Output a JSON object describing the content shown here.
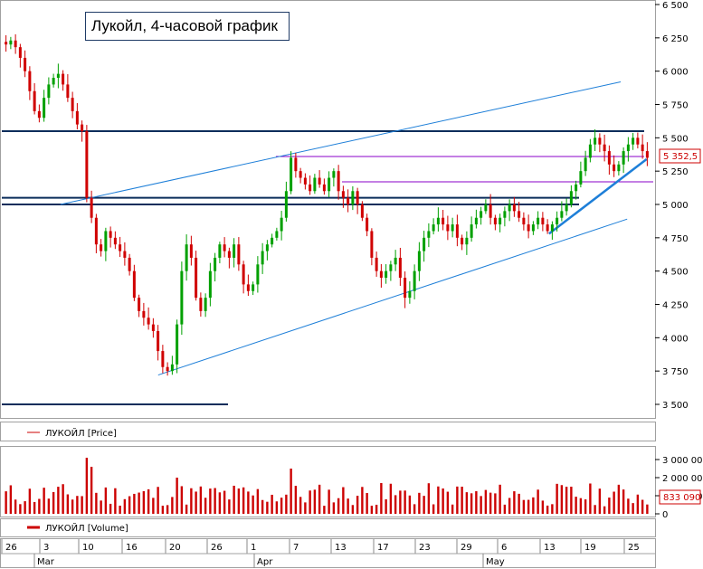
{
  "chart_data": {
    "type": "candlestick",
    "title": "Лукойл, 4-часовой график",
    "price_axis": {
      "ticks": [
        "6 500",
        "6 250",
        "6 000",
        "5 750",
        "5 500",
        "5 250",
        "5 000",
        "4 750",
        "4 500",
        "4 250",
        "4 000",
        "3 750",
        "3 500"
      ],
      "tick_values": [
        6500,
        6250,
        6000,
        5750,
        5500,
        5250,
        5000,
        4750,
        4500,
        4250,
        4000,
        3750,
        3500
      ],
      "ylim": [
        3400,
        6520
      ]
    },
    "volume_axis": {
      "ticks": [
        "3 000 000",
        "2 000 000",
        "1 000 000",
        "0"
      ],
      "tick_values": [
        3000000,
        2000000,
        1000000,
        0
      ],
      "ylim": [
        0,
        3500000
      ]
    },
    "x_axis": {
      "day_labels": [
        "26",
        "3",
        "10",
        "16",
        "20",
        "26",
        "1",
        "7",
        "13",
        "17",
        "23",
        "29",
        "6",
        "13",
        "19",
        "25"
      ],
      "month_labels": [
        "Mar",
        "Apr",
        "May"
      ]
    },
    "last_price_label": "5 352,5",
    "last_volume_label": "833 090",
    "legends": {
      "price": "ЛУКОЙЛ [Price]",
      "volume": "ЛУКОЙЛ [Volume]"
    },
    "colors": {
      "up": "#00a000",
      "down": "#d00000",
      "volume": "#cc0000",
      "trend": "#1e7fd8",
      "level": "#0b2d5b",
      "resistance": "#8a00c8"
    },
    "levels": [
      5550,
      5050,
      5000,
      3500
    ],
    "resistance_levels": [
      5360,
      5170
    ],
    "trend_lines": [
      {
        "from": [
          0.09,
          5000
        ],
        "to": [
          0.95,
          5920
        ]
      },
      {
        "from": [
          0.24,
          3720
        ],
        "to": [
          0.96,
          4890
        ]
      },
      {
        "from": [
          0.84,
          4780
        ],
        "to": [
          0.99,
          5340
        ]
      }
    ],
    "candles_ohlc_summary": "approx. 4-hour bars, late Feb to end of May",
    "price_path": [
      6200,
      6230,
      6180,
      6100,
      6000,
      5850,
      5700,
      5650,
      5800,
      5900,
      5950,
      5980,
      5900,
      5800,
      5700,
      5600,
      5550,
      5050,
      4900,
      4700,
      4650,
      4800,
      4750,
      4700,
      4650,
      4600,
      4500,
      4300,
      4200,
      4150,
      4100,
      4050,
      3900,
      3780,
      3750,
      3800,
      4100,
      4500,
      4700,
      4600,
      4300,
      4200,
      4300,
      4500,
      4600,
      4700,
      4650,
      4600,
      4700,
      4550,
      4400,
      4350,
      4400,
      4550,
      4650,
      4700,
      4750,
      4800,
      4900,
      5100,
      5350,
      5250,
      5200,
      5150,
      5100,
      5200,
      5150,
      5100,
      5200,
      5250,
      5100,
      5050,
      5000,
      5100,
      5000,
      4900,
      4800,
      4600,
      4500,
      4450,
      4500,
      4550,
      4600,
      4450,
      4300,
      4350,
      4500,
      4650,
      4750,
      4800,
      4850,
      4900,
      4850,
      4800,
      4850,
      4750,
      4700,
      4750,
      4850,
      4900,
      4950,
      5000,
      4900,
      4850,
      4900,
      4950,
      5000,
      4950,
      4900,
      4850,
      4800,
      4850,
      4900,
      4850,
      4800,
      4850,
      4900,
      4950,
      5000,
      5100,
      5150,
      5250,
      5350,
      5450,
      5500,
      5450,
      5400,
      5300,
      5250,
      5300,
      5400,
      5450,
      5500,
      5450,
      5400,
      5350
    ]
  }
}
